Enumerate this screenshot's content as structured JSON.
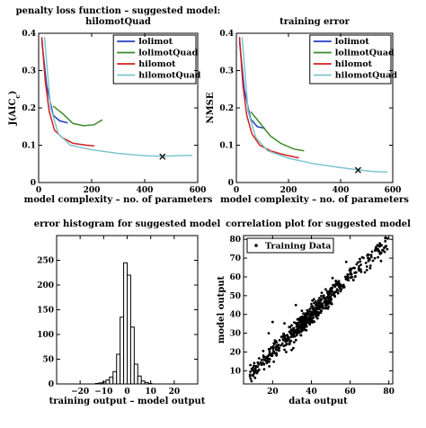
{
  "chart_data": [
    {
      "type": "line",
      "title": "penalty loss function – suggested model:",
      "subtitle": "hilomotQuad",
      "xlabel": "model complexity – no. of parameters",
      "ylabel": "J(AIC",
      "ylabel_sub": "c",
      "ylabel_tail": ")",
      "xlim": [
        0,
        600
      ],
      "ylim": [
        0,
        0.4
      ],
      "xticks": [
        "0",
        "200",
        "400",
        "600"
      ],
      "yticks": [
        "0",
        "0.1",
        "0.2",
        "0.3",
        "0.4"
      ],
      "legend_position": "top-right",
      "series": [
        {
          "name": "lolimot",
          "color": "#1f3fbf",
          "x": [
            12,
            30,
            55,
            80,
            110
          ],
          "y": [
            0.38,
            0.26,
            0.18,
            0.165,
            0.16
          ]
        },
        {
          "name": "lolimotQuad",
          "color": "#3a8a2a",
          "x": [
            55,
            90,
            130,
            170,
            210,
            240
          ],
          "y": [
            0.205,
            0.185,
            0.158,
            0.152,
            0.155,
            0.168
          ]
        },
        {
          "name": "hilomot",
          "color": "#d42020",
          "x": [
            12,
            25,
            40,
            60,
            90,
            130,
            180,
            210
          ],
          "y": [
            0.39,
            0.27,
            0.19,
            0.14,
            0.12,
            0.105,
            0.1,
            0.098
          ]
        },
        {
          "name": "hilomotQuad",
          "color": "#7cc6cf",
          "x": [
            22,
            45,
            75,
            120,
            200,
            300,
            400,
            467,
            520,
            580
          ],
          "y": [
            0.39,
            0.2,
            0.13,
            0.1,
            0.088,
            0.078,
            0.072,
            0.07,
            0.072,
            0.073
          ]
        }
      ],
      "marker": {
        "x": 467,
        "y": 0.07,
        "symbol": "×"
      }
    },
    {
      "type": "line",
      "title": "training error",
      "xlabel": "model complexity – no. of parameters",
      "ylabel": "NMSE",
      "xlim": [
        0,
        600
      ],
      "ylim": [
        0,
        0.4
      ],
      "xticks": [
        "0",
        "200",
        "400",
        "600"
      ],
      "yticks": [
        "0",
        "0.1",
        "0.2",
        "0.3",
        "0.4"
      ],
      "legend_position": "top-right",
      "series": [
        {
          "name": "lolimot",
          "color": "#1f3fbf",
          "x": [
            12,
            30,
            55,
            80,
            110
          ],
          "y": [
            0.38,
            0.25,
            0.17,
            0.15,
            0.145
          ]
        },
        {
          "name": "lolimotQuad",
          "color": "#3a8a2a",
          "x": [
            55,
            90,
            130,
            170,
            220,
            260
          ],
          "y": [
            0.19,
            0.16,
            0.125,
            0.105,
            0.09,
            0.085
          ]
        },
        {
          "name": "hilomot",
          "color": "#d42020",
          "x": [
            12,
            25,
            40,
            60,
            90,
            130,
            180,
            240
          ],
          "y": [
            0.39,
            0.26,
            0.18,
            0.13,
            0.1,
            0.085,
            0.075,
            0.066
          ]
        },
        {
          "name": "hilomotQuad",
          "color": "#7cc6cf",
          "x": [
            22,
            45,
            75,
            120,
            200,
            300,
            400,
            467,
            520,
            580
          ],
          "y": [
            0.39,
            0.19,
            0.12,
            0.085,
            0.065,
            0.05,
            0.04,
            0.034,
            0.03,
            0.028
          ]
        }
      ],
      "marker": {
        "x": 467,
        "y": 0.034,
        "symbol": "×"
      }
    },
    {
      "type": "bar",
      "title": "error histogram for suggested model",
      "xlabel": "training output – model output",
      "ylabel": "",
      "xlim": [
        -30,
        30
      ],
      "ylim": [
        0,
        300
      ],
      "xticks": [
        "−20",
        "−10",
        "0",
        "10",
        "20"
      ],
      "yticks": [
        "0",
        "50",
        "100",
        "150",
        "200",
        "250"
      ],
      "bin_width": 1.5,
      "bin_centers": [
        -12.75,
        -11.25,
        -9.75,
        -8.25,
        -6.75,
        -5.25,
        -3.75,
        -2.25,
        -0.75,
        0.75,
        2.25,
        3.75,
        5.25,
        6.75,
        8.25,
        9.75
      ],
      "values": [
        1,
        2,
        4,
        8,
        14,
        25,
        60,
        135,
        245,
        220,
        115,
        40,
        16,
        6,
        3,
        1
      ]
    },
    {
      "type": "scatter",
      "title": "correlation plot for suggested model",
      "xlabel": "data output",
      "ylabel": "model output",
      "xlim": [
        5,
        82
      ],
      "ylim": [
        3,
        82
      ],
      "xticks": [
        "20",
        "40",
        "60",
        "80"
      ],
      "yticks": [
        "10",
        "20",
        "30",
        "40",
        "50",
        "60",
        "70",
        "80"
      ],
      "legend_position": "top-left",
      "series": [
        {
          "name": "Training Data",
          "color": "#000000",
          "trend": {
            "slope": 1,
            "intercept": 0
          },
          "count": 620
        }
      ]
    }
  ]
}
